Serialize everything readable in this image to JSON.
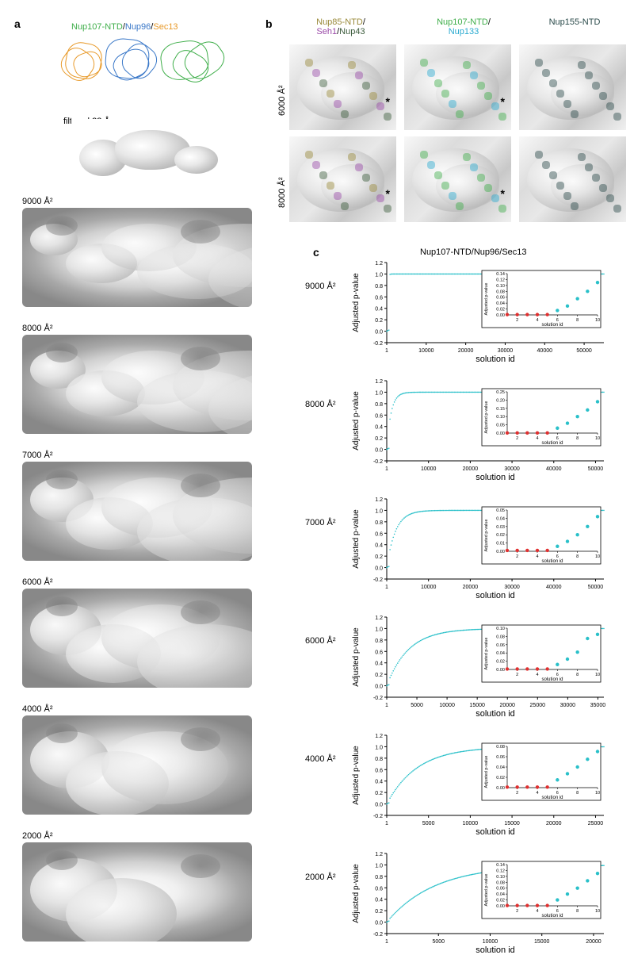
{
  "panelA": {
    "label": "a",
    "legend": {
      "nup107": {
        "text": "Nup107-NTD",
        "color": "#3fae4a"
      },
      "nup96": {
        "text": "Nup96",
        "color": "#3a78c8"
      },
      "sec13": {
        "text": "Sec13",
        "color": "#e89a2a"
      },
      "sep": "/"
    },
    "filtered_label": "filtered 23 Å",
    "surface_labels": [
      "9000 Å²",
      "8000 Å²",
      "7000 Å²",
      "6000 Å²",
      "4000 Å²",
      "2000 Å²"
    ],
    "density_color_light": "#f5f5f5",
    "density_color_dark": "#8a8a8a"
  },
  "panelB": {
    "label": "b",
    "row_labels": [
      "6000 Å²",
      "8000 Å²"
    ],
    "columns": [
      {
        "parts": [
          {
            "text": "Nup85-NTD",
            "color": "#9a8a3a"
          },
          {
            "text": "/",
            "color": "#000000"
          }
        ],
        "line2": [
          {
            "text": "Seh1",
            "color": "#9a4aa8"
          },
          {
            "text": "/",
            "color": "#000000"
          },
          {
            "text": "Nup43",
            "color": "#3a5a3a"
          }
        ]
      },
      {
        "parts": [
          {
            "text": "Nup107-NTD",
            "color": "#3fae4a"
          },
          {
            "text": "/",
            "color": "#000000"
          }
        ],
        "line2": [
          {
            "text": "Nup133",
            "color": "#2aaad0"
          }
        ]
      },
      {
        "parts": [
          {
            "text": "Nup155-NTD",
            "color": "#2a4a4a"
          }
        ],
        "line2": []
      }
    ],
    "asterisk": "*"
  },
  "panelC": {
    "label": "c",
    "title": "Nup107-NTD/Nup96/Sec13",
    "ylabel": "Adjusted p-value",
    "xlabel": "solution id",
    "inset_ylabel": "Adjusted p-value",
    "inset_xlabel": "solution id",
    "shared": {
      "ylim": [
        -0.2,
        1.2
      ],
      "yticks": [
        -0.2,
        0.0,
        0.2,
        0.4,
        0.6,
        0.8,
        1.0,
        1.2
      ],
      "line_color": "#29c0c9",
      "truth_color": "#e03030",
      "nontruth_color": "#29c0c9",
      "axis_color": "#000000",
      "inset_border": "#000000",
      "background": "#ffffff",
      "marker_size": 2.2,
      "line_width": 1.0,
      "font_size_axis": 9,
      "font_size_tick": 7,
      "inset_xticks": [
        2,
        4,
        6,
        8,
        10
      ],
      "inset_n_points": 10,
      "inset_truth_count": 5
    },
    "charts": [
      {
        "label": "9000 Å²",
        "xmax": 55000,
        "xticks": [
          1,
          10000,
          20000,
          30000,
          40000,
          50000
        ],
        "curve_knee": 0.003,
        "inset_ymax": 0.14,
        "inset_yticks": [
          0.0,
          0.02,
          0.04,
          0.06,
          0.08,
          0.1,
          0.12,
          0.14
        ],
        "inset_values": [
          0.001,
          0.001,
          0.001,
          0.001,
          0.001,
          0.015,
          0.03,
          0.055,
          0.08,
          0.11
        ]
      },
      {
        "label": "8000 Å²",
        "xmax": 52000,
        "xticks": [
          1,
          10000,
          20000,
          30000,
          40000,
          50000
        ],
        "curve_knee": 0.02,
        "inset_ymax": 0.25,
        "inset_yticks": [
          0.0,
          0.05,
          0.1,
          0.15,
          0.2,
          0.25
        ],
        "inset_values": [
          0.001,
          0.001,
          0.001,
          0.001,
          0.001,
          0.03,
          0.06,
          0.1,
          0.14,
          0.19
        ]
      },
      {
        "label": "7000 Å²",
        "xmax": 52000,
        "xticks": [
          1,
          10000,
          20000,
          30000,
          40000,
          50000
        ],
        "curve_knee": 0.04,
        "inset_ymax": 0.05,
        "inset_yticks": [
          0.0,
          0.01,
          0.02,
          0.03,
          0.04,
          0.05
        ],
        "inset_values": [
          0.001,
          0.001,
          0.001,
          0.001,
          0.001,
          0.006,
          0.012,
          0.02,
          0.03,
          0.042
        ]
      },
      {
        "label": "6000 Å²",
        "xmax": 36000,
        "xticks": [
          1,
          5000,
          10000,
          15000,
          20000,
          25000,
          30000,
          35000
        ],
        "curve_knee": 0.1,
        "inset_ymax": 0.1,
        "inset_yticks": [
          0.0,
          0.02,
          0.04,
          0.06,
          0.08,
          0.1
        ],
        "inset_values": [
          0.001,
          0.001,
          0.001,
          0.001,
          0.001,
          0.012,
          0.025,
          0.042,
          0.075,
          0.085
        ]
      },
      {
        "label": "4000 Å²",
        "xmax": 26000,
        "xticks": [
          1,
          5000,
          10000,
          15000,
          20000,
          25000
        ],
        "curve_knee": 0.14,
        "inset_ymax": 0.08,
        "inset_yticks": [
          0.0,
          0.02,
          0.04,
          0.06,
          0.08
        ],
        "inset_values": [
          0.001,
          0.001,
          0.001,
          0.001,
          0.001,
          0.015,
          0.027,
          0.04,
          0.055,
          0.07
        ]
      },
      {
        "label": "2000 Å²",
        "xmax": 21000,
        "xticks": [
          1,
          5000,
          10000,
          15000,
          20000
        ],
        "curve_knee": 0.22,
        "inset_ymax": 0.14,
        "inset_yticks": [
          0.0,
          0.02,
          0.04,
          0.06,
          0.08,
          0.1,
          0.12,
          0.14
        ],
        "inset_values": [
          0.001,
          0.001,
          0.001,
          0.001,
          0.001,
          0.02,
          0.04,
          0.06,
          0.085,
          0.11
        ]
      }
    ]
  }
}
